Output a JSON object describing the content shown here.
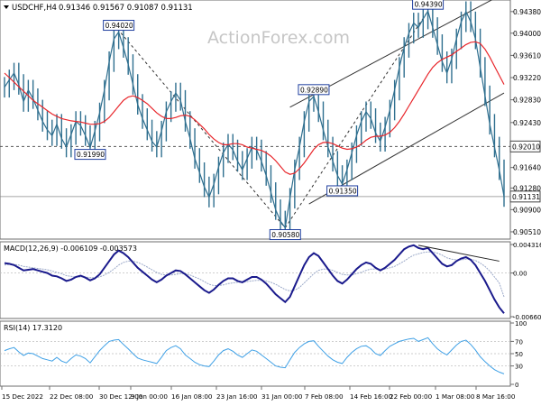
{
  "header": {
    "symbol": "USDCHF,H4",
    "ohlc": "0.91346 0.91567 0.91087 0.91131"
  },
  "watermark": "ActionForex.com",
  "colors": {
    "price": "#2f6f8f",
    "ma": "#e8262b",
    "channel": "#333333",
    "macd": "#1a1a8c",
    "signal": "#9aa8c8",
    "rsi": "#3ea0e6",
    "label_border": "#1f3f9f",
    "grid": "#bfbfbf"
  },
  "chart_data": [
    {
      "type": "line",
      "panel": "price",
      "series": [
        {
          "kind": "price",
          "values": [
            0.9305,
            0.9318,
            0.933,
            0.931,
            0.928,
            0.93,
            0.9285,
            0.9265,
            0.9245,
            0.923,
            0.922,
            0.924,
            0.9215,
            0.92,
            0.9222,
            0.9245,
            0.9238,
            0.922,
            0.9199,
            0.9228,
            0.926,
            0.93,
            0.935,
            0.939,
            0.9402,
            0.9375,
            0.9345,
            0.931,
            0.9275,
            0.925,
            0.923,
            0.921,
            0.92,
            0.9228,
            0.9262,
            0.928,
            0.9295,
            0.9282,
            0.9245,
            0.9215,
            0.918,
            0.9155,
            0.913,
            0.9112,
            0.9135,
            0.9165,
            0.919,
            0.9205,
            0.9195,
            0.9175,
            0.916,
            0.918,
            0.92,
            0.9195,
            0.9175,
            0.915,
            0.912,
            0.909,
            0.907,
            0.9058,
            0.911,
            0.916,
            0.92,
            0.9245,
            0.928,
            0.9289,
            0.9262,
            0.923,
            0.92,
            0.9175,
            0.915,
            0.9135,
            0.916,
            0.919,
            0.922,
            0.9245,
            0.9262,
            0.925,
            0.9225,
            0.921,
            0.9235,
            0.9265,
            0.93,
            0.934,
            0.9375,
            0.94,
            0.9418,
            0.941,
            0.9425,
            0.9439,
            0.941,
            0.938,
            0.935,
            0.933,
            0.9355,
            0.939,
            0.942,
            0.9438,
            0.942,
            0.939,
            0.934,
            0.929,
            0.924,
            0.92,
            0.916,
            0.9113
          ]
        },
        {
          "kind": "ma",
          "values": [
            0.933,
            0.9322,
            0.9314,
            0.9306,
            0.9298,
            0.929,
            0.9282,
            0.9276,
            0.927,
            0.9264,
            0.9258,
            0.9254,
            0.925,
            0.9248,
            0.9246,
            0.9245,
            0.9244,
            0.9242,
            0.924,
            0.924,
            0.9241,
            0.9245,
            0.9252,
            0.9262,
            0.9272,
            0.9282,
            0.9288,
            0.929,
            0.9287,
            0.9282,
            0.9276,
            0.9268,
            0.926,
            0.9254,
            0.925,
            0.925,
            0.9252,
            0.9255,
            0.9256,
            0.9254,
            0.9248,
            0.924,
            0.9232,
            0.9222,
            0.9214,
            0.9208,
            0.9204,
            0.9204,
            0.9206,
            0.9206,
            0.9204,
            0.92,
            0.9198,
            0.9196,
            0.9194,
            0.919,
            0.9184,
            0.9176,
            0.9166,
            0.9156,
            0.9152,
            0.9154,
            0.9162,
            0.9172,
            0.9184,
            0.9196,
            0.9204,
            0.9208,
            0.9208,
            0.9206,
            0.9202,
            0.9198,
            0.9196,
            0.9197,
            0.92,
            0.9205,
            0.9212,
            0.9217,
            0.9219,
            0.9219,
            0.9221,
            0.9226,
            0.9234,
            0.9245,
            0.9258,
            0.9272,
            0.9286,
            0.93,
            0.9314,
            0.9328,
            0.934,
            0.9348,
            0.9354,
            0.9358,
            0.9362,
            0.9368,
            0.9374,
            0.938,
            0.9384,
            0.9385,
            0.9382,
            0.9372,
            0.9358,
            0.9342,
            0.9326,
            0.931
          ]
        }
      ],
      "y_ticks": [
        "0.94380",
        "0.94000",
        "0.93610",
        "0.93220",
        "0.92830",
        "0.92430",
        "0.92010",
        "0.91640",
        "0.91280",
        "0.90900",
        "0.90510"
      ],
      "current_price": "0.91131",
      "level_line": 0.9201,
      "level_label": "0.92010",
      "annotations": [
        {
          "text": "0.94020",
          "value": 0.9402,
          "index": 24
        },
        {
          "text": "0.91990",
          "value": 0.9199,
          "index": 18
        },
        {
          "text": "0.92890",
          "value": 0.9289,
          "index": 65
        },
        {
          "text": "0.90580",
          "value": 0.9058,
          "index": 59
        },
        {
          "text": "0.91350",
          "value": 0.9135,
          "index": 71
        },
        {
          "text": "0.94390",
          "value": 0.9439,
          "index": 89
        }
      ],
      "trendlines": [
        {
          "from": [
            23,
            0.9415
          ],
          "to": [
            59,
            0.9058
          ],
          "style": "dashed"
        },
        {
          "from": [
            59,
            0.9058
          ],
          "to": [
            89,
            0.9439
          ],
          "style": "dashed"
        },
        {
          "from": [
            60,
            0.927
          ],
          "to": [
            105,
            0.947
          ],
          "style": "solid"
        },
        {
          "from": [
            64,
            0.91
          ],
          "to": [
            105,
            0.9295
          ],
          "style": "solid"
        }
      ]
    },
    {
      "type": "line",
      "panel": "macd",
      "title": "MACD(12,26,9) -0.006109 -0.003573",
      "series": [
        {
          "kind": "macd",
          "values": [
            0.0015,
            0.0014,
            0.0012,
            0.0008,
            0.0004,
            0.0005,
            0.0006,
            0.0004,
            0.0002,
            0.0,
            -0.0004,
            -0.0005,
            -0.0008,
            -0.0012,
            -0.001,
            -0.0006,
            -0.0004,
            -0.0007,
            -0.0011,
            -0.0008,
            -0.0002,
            0.0008,
            0.0018,
            0.0028,
            0.0034,
            0.003,
            0.0024,
            0.0016,
            0.0008,
            0.0002,
            -0.0004,
            -0.001,
            -0.0014,
            -0.001,
            -0.0004,
            0.0,
            0.0004,
            0.0003,
            -0.0002,
            -0.0008,
            -0.0014,
            -0.002,
            -0.0026,
            -0.003,
            -0.0025,
            -0.0018,
            -0.0012,
            -0.0008,
            -0.0008,
            -0.0012,
            -0.0014,
            -0.001,
            -0.0006,
            -0.0006,
            -0.001,
            -0.0016,
            -0.0024,
            -0.0032,
            -0.0038,
            -0.0044,
            -0.0036,
            -0.002,
            -0.0004,
            0.0012,
            0.0024,
            0.003,
            0.0026,
            0.0016,
            0.0006,
            -0.0004,
            -0.0012,
            -0.0016,
            -0.001,
            -0.0002,
            0.0006,
            0.0012,
            0.0016,
            0.0014,
            0.0008,
            0.0004,
            0.0008,
            0.0014,
            0.002,
            0.0028,
            0.0036,
            0.004,
            0.0042,
            0.0038,
            0.0036,
            0.0038,
            0.003,
            0.0022,
            0.0014,
            0.001,
            0.0012,
            0.0018,
            0.0022,
            0.0024,
            0.002,
            0.0012,
            0.0,
            -0.0012,
            -0.0026,
            -0.004,
            -0.0052,
            -0.0061
          ]
        },
        {
          "kind": "signal",
          "values": [
            0.0012,
            0.0013,
            0.0013,
            0.0012,
            0.001,
            0.0009,
            0.0008,
            0.0007,
            0.0006,
            0.0005,
            0.0003,
            0.0001,
            -0.0001,
            -0.0004,
            -0.0005,
            -0.0006,
            -0.0006,
            -0.0006,
            -0.0007,
            -0.0007,
            -0.0006,
            -0.0003,
            0.0001,
            0.0006,
            0.0012,
            0.0016,
            0.0018,
            0.0018,
            0.0016,
            0.0013,
            0.0009,
            0.0005,
            0.0001,
            -0.0002,
            -0.0003,
            -0.0003,
            -0.0002,
            -0.0001,
            -0.0001,
            -0.0003,
            -0.0006,
            -0.0009,
            -0.0013,
            -0.0017,
            -0.0019,
            -0.0019,
            -0.0018,
            -0.0016,
            -0.0015,
            -0.0014,
            -0.0014,
            -0.0013,
            -0.0012,
            -0.0011,
            -0.0011,
            -0.0012,
            -0.0014,
            -0.0017,
            -0.0021,
            -0.0025,
            -0.0027,
            -0.0026,
            -0.0022,
            -0.0015,
            -0.0008,
            -0.0001,
            0.0004,
            0.0006,
            0.0006,
            0.0004,
            0.0001,
            -0.0002,
            -0.0003,
            -0.0003,
            -0.0001,
            0.0001,
            0.0004,
            0.0006,
            0.0006,
            0.0006,
            0.0006,
            0.0008,
            0.001,
            0.0014,
            0.0018,
            0.0023,
            0.0027,
            0.0029,
            0.0031,
            0.0032,
            0.0032,
            0.003,
            0.0027,
            0.0023,
            0.0021,
            0.002,
            0.002,
            0.0021,
            0.0021,
            0.0019,
            0.0015,
            0.001,
            0.0003,
            -0.0006,
            -0.0015,
            -0.0036
          ]
        }
      ],
      "y_ticks": [
        "0.004316",
        "0.00",
        "-0.006605"
      ],
      "ylim": [
        -0.006605,
        0.004316
      ],
      "trendline": {
        "from": [
          87,
          0.0042
        ],
        "to": [
          104,
          0.0018
        ],
        "style": "solid"
      }
    },
    {
      "type": "line",
      "panel": "rsi",
      "title": "RSI(14) 17.3120",
      "series": [
        {
          "kind": "rsi",
          "values": [
            55,
            58,
            60,
            53,
            47,
            51,
            50,
            46,
            42,
            40,
            38,
            44,
            38,
            35,
            42,
            48,
            46,
            42,
            35,
            45,
            55,
            63,
            70,
            72,
            73,
            65,
            58,
            50,
            43,
            40,
            38,
            36,
            34,
            44,
            55,
            60,
            63,
            58,
            48,
            42,
            36,
            32,
            30,
            29,
            38,
            48,
            55,
            58,
            54,
            48,
            44,
            50,
            56,
            54,
            48,
            42,
            36,
            30,
            28,
            27,
            40,
            52,
            60,
            66,
            70,
            71,
            62,
            54,
            46,
            40,
            36,
            34,
            44,
            52,
            58,
            62,
            63,
            58,
            50,
            47,
            55,
            62,
            66,
            70,
            72,
            74,
            75,
            70,
            73,
            76,
            66,
            58,
            52,
            48,
            56,
            64,
            70,
            72,
            65,
            56,
            45,
            37,
            30,
            24,
            20,
            17
          ]
        }
      ],
      "y_ticks": [
        "100",
        "70",
        "50",
        "30",
        "0"
      ],
      "ylim": [
        0,
        100
      ]
    }
  ],
  "x_axis": {
    "labels": [
      "15 Dec 2022",
      "22 Dec 08:00",
      "30 Dec 12:00",
      "9 Jan 00:00",
      "16 Jan 08:00",
      "23 Jan 16:00",
      "31 Jan 00:00",
      "7 Feb 08:00",
      "14 Feb 16:00",
      "22 Feb 00:00",
      "1 Mar 08:00",
      "8 Mar 16:00"
    ]
  }
}
